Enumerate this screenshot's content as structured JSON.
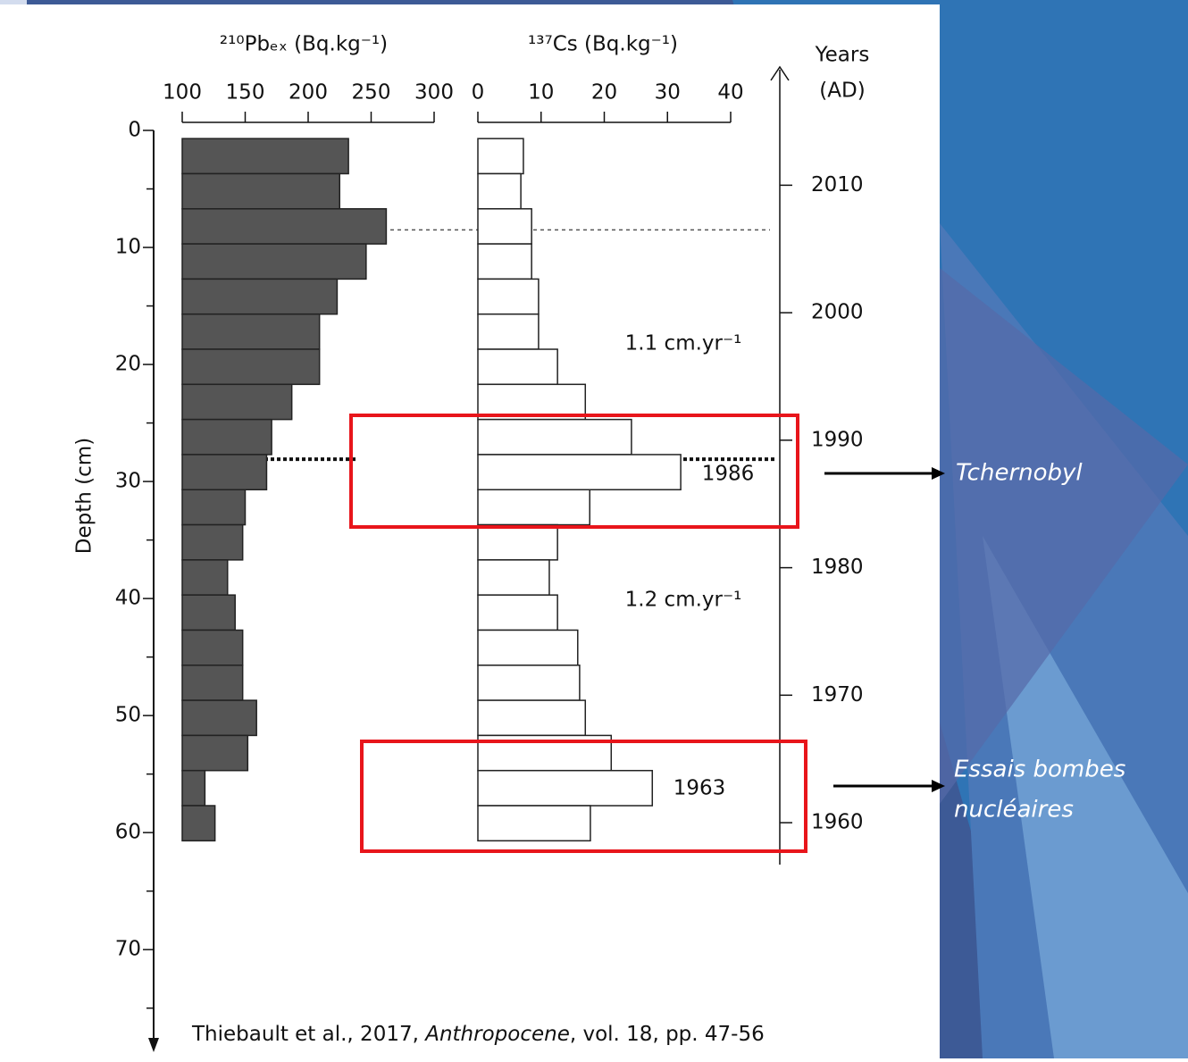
{
  "chart_data": {
    "type": "depth-profile",
    "y_label": "Depth (cm)",
    "ylim": [
      0,
      78
    ],
    "yticks": [
      0,
      10,
      20,
      30,
      40,
      50,
      60,
      70
    ],
    "yminorticks": [
      5,
      15,
      25,
      35,
      45,
      55,
      65,
      75
    ],
    "bins": [
      0.7,
      3.7,
      6.7,
      9.7,
      12.7,
      15.7,
      18.7,
      21.7,
      24.7,
      27.7,
      30.7,
      33.7,
      36.7,
      39.7,
      42.7,
      45.7,
      48.7,
      51.7,
      54.7,
      57.7,
      60.7
    ],
    "panels": [
      {
        "name": "²¹⁰Pbₑₓ (Bq.kg⁻¹)",
        "color": "#555555",
        "xlim": [
          100,
          300
        ],
        "xticks": [
          100,
          150,
          200,
          250,
          300
        ],
        "values": [
          232,
          225,
          262,
          246,
          223,
          209,
          209,
          187,
          171,
          167,
          150,
          148,
          136,
          142,
          148,
          148,
          159,
          152,
          118,
          126
        ]
      },
      {
        "name": "¹³⁷Cs (Bq.kg⁻¹)",
        "color": "#ffffff",
        "xlim": [
          0,
          40
        ],
        "xticks": [
          0,
          10,
          20,
          30,
          40
        ],
        "values": [
          7.2,
          6.8,
          8.5,
          8.5,
          9.6,
          9.6,
          12.6,
          17,
          24.3,
          32.1,
          17.7,
          12.6,
          11.3,
          12.6,
          15.8,
          16.1,
          17,
          21.1,
          27.6,
          17.8
        ]
      }
    ],
    "y2_label": [
      "Years",
      "(AD)"
    ],
    "y2lim": [
      2014.3,
      1942.7
    ],
    "y2ticks": [
      2010,
      2000,
      1990,
      1980,
      1970,
      1960
    ],
    "markers": [
      8.5,
      28.1
    ],
    "annotations": [
      "1.1 cm.yr⁻¹",
      "1.2 cm.yr⁻¹",
      "1986",
      "1963"
    ]
  },
  "slide": {
    "callouts": [
      [
        "Tchernobyl"
      ],
      [
        "Essais bombes",
        "nucléaires"
      ]
    ],
    "citation": [
      "Thiebault et al., 2017, ",
      "Anthropocene",
      ", vol. 18, pp. 47-56"
    ]
  }
}
